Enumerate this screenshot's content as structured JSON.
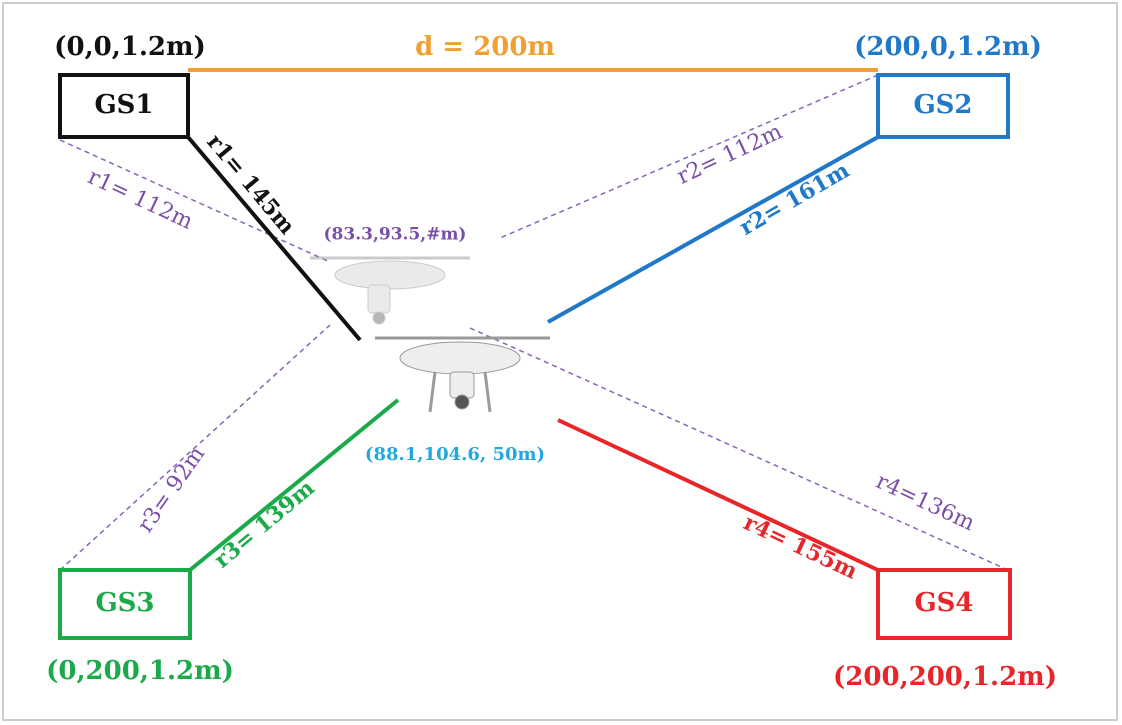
{
  "baseline": {
    "label": "d = 200m"
  },
  "ground_stations": [
    {
      "label": "GS1",
      "coordinates": "(0,0,1.2m)"
    },
    {
      "label": "GS2",
      "coordinates": "(200,0,1.2m)"
    },
    {
      "label": "GS3",
      "coordinates": "(0,200,1.2m)"
    },
    {
      "label": "GS4",
      "coordinates": "(200,200,1.2m)"
    }
  ],
  "ranges": [
    {
      "solid": "r1= 145m",
      "dashed": "r1= 112m"
    },
    {
      "solid": "r2= 161m",
      "dashed": "r2= 112m"
    },
    {
      "solid": "r3= 139m",
      "dashed": "r3= 92m"
    },
    {
      "solid": "r4= 155m",
      "dashed": "r4=136m"
    }
  ],
  "drones": [
    {
      "position": "(83.3,93.5,#m)"
    },
    {
      "position": "(88.1,104.6, 50m)"
    }
  ]
}
